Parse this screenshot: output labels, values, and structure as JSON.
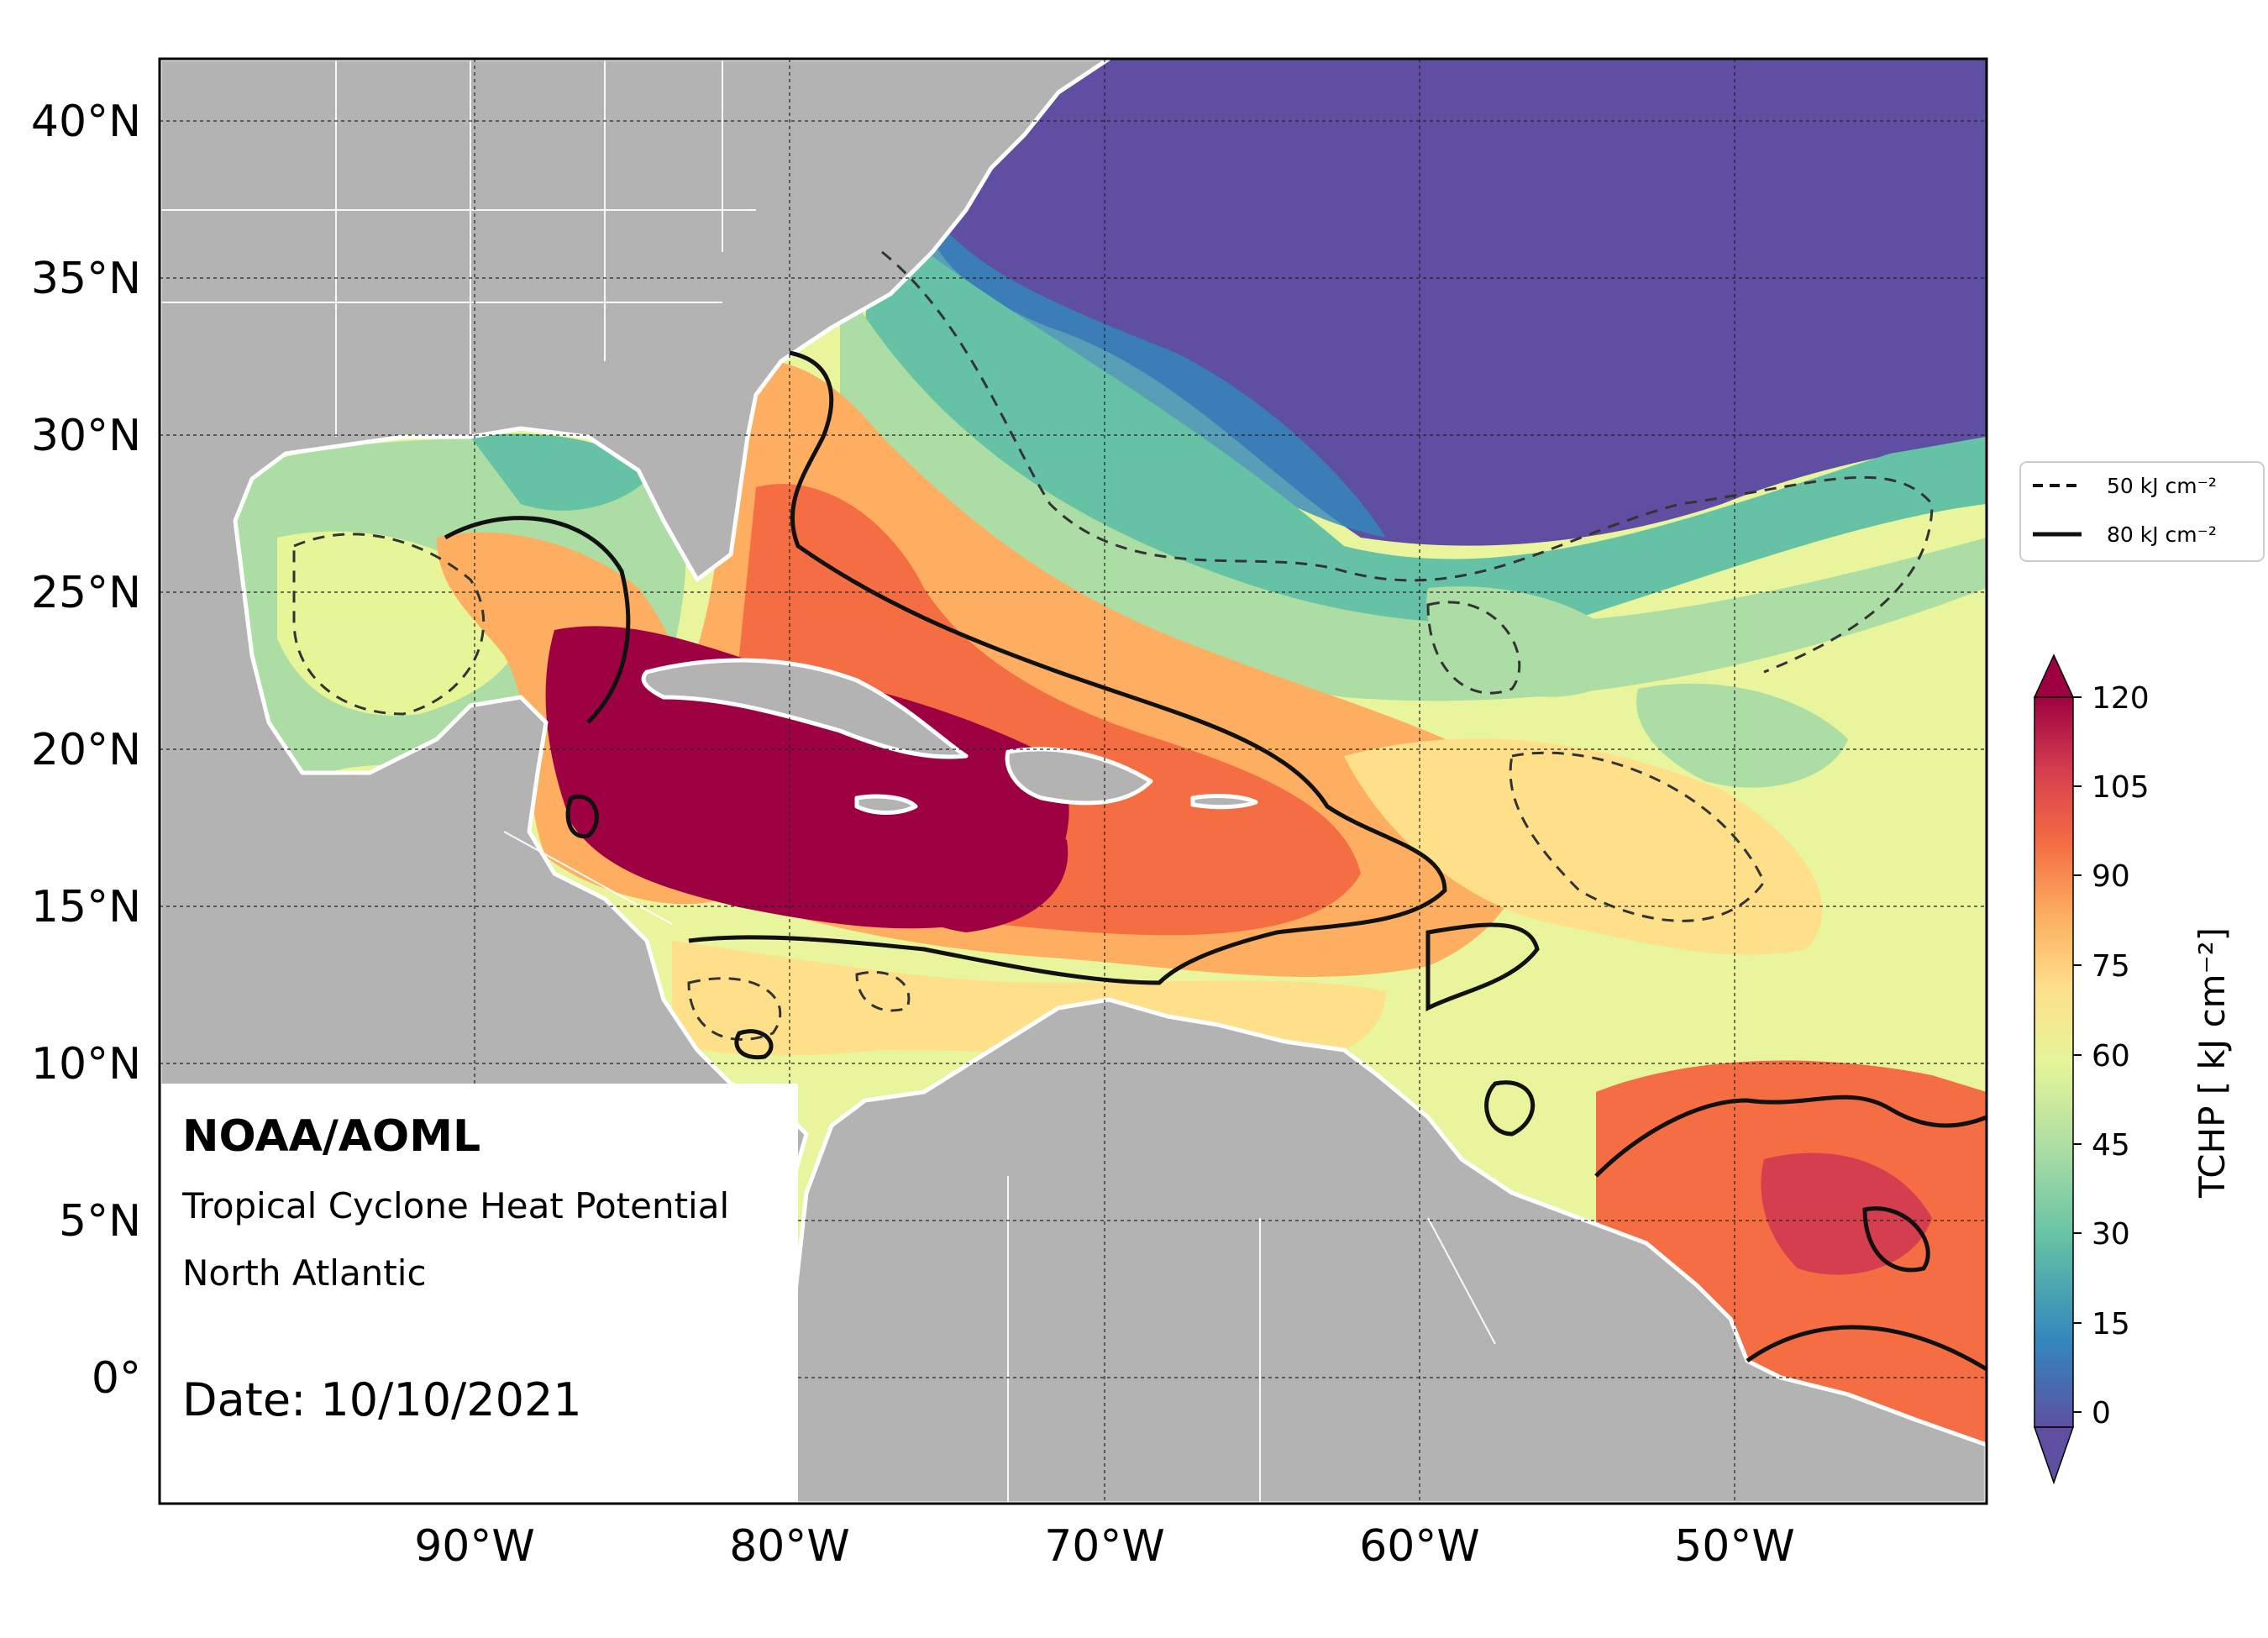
{
  "annotation": {
    "org": "NOAA/AOML",
    "product": "Tropical Cyclone Heat Potential",
    "region": "North Atlantic",
    "date_text": "Date: 10/10/2021"
  },
  "map_axes": {
    "lat_ticks": [
      "40°N",
      "35°N",
      "30°N",
      "25°N",
      "20°N",
      "15°N",
      "10°N",
      "5°N",
      "0°"
    ],
    "lon_ticks": [
      "90°W",
      "80°W",
      "70°W",
      "60°W",
      "50°W"
    ],
    "lat_range": [
      -4,
      42
    ],
    "lon_range": [
      -100,
      -42
    ]
  },
  "legend": {
    "items": [
      {
        "label": "50 kJ cm⁻²",
        "style": "dashed"
      },
      {
        "label": "80 kJ cm⁻²",
        "style": "solid"
      }
    ]
  },
  "colorbar": {
    "label": "TCHP [ kJ cm⁻²]",
    "ticks": [
      "120",
      "105",
      "90",
      "75",
      "60",
      "45",
      "30",
      "15",
      "0"
    ],
    "range": [
      -5,
      120
    ],
    "extend": "both",
    "colors": [
      "#5e4fa2",
      "#3288bd",
      "#66c2a5",
      "#abdda4",
      "#e6f598",
      "#fee08b",
      "#fdae61",
      "#f46d43",
      "#d53e4f",
      "#9e0142"
    ]
  },
  "colors": {
    "land": "#b3b3b3",
    "land_border": "#ffffff",
    "contour": "#111111"
  }
}
